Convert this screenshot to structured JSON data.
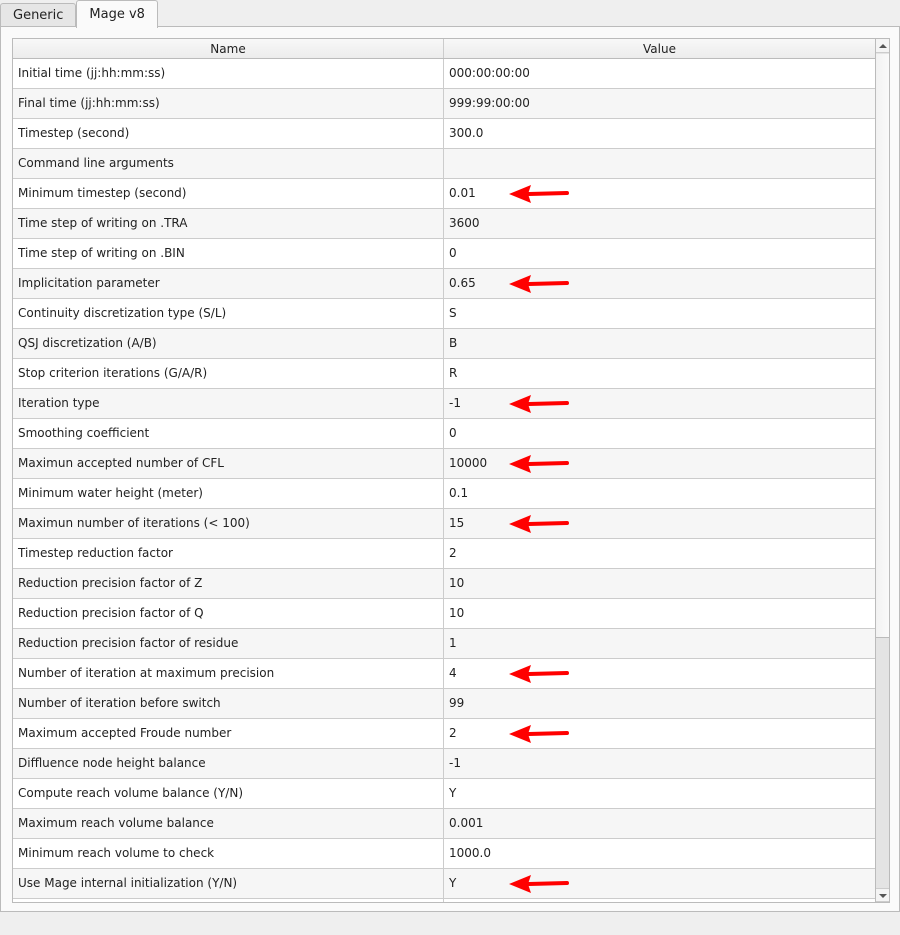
{
  "tabs": [
    {
      "label": "Generic",
      "active": false
    },
    {
      "label": "Mage v8",
      "active": true
    }
  ],
  "table": {
    "columns": [
      "Name",
      "Value"
    ],
    "rows": [
      {
        "name": "Initial time (jj:hh:mm:ss)",
        "value": "000:00:00:00",
        "arrow": false
      },
      {
        "name": "Final time (jj:hh:mm:ss)",
        "value": "999:99:00:00",
        "arrow": false
      },
      {
        "name": "Timestep (second)",
        "value": "300.0",
        "arrow": false
      },
      {
        "name": "Command line arguments",
        "value": "",
        "arrow": false
      },
      {
        "name": "Minimum timestep (second)",
        "value": "0.01",
        "arrow": true
      },
      {
        "name": "Time step of writing on .TRA",
        "value": "3600",
        "arrow": false
      },
      {
        "name": "Time step of writing on .BIN",
        "value": "0",
        "arrow": false
      },
      {
        "name": "Implicitation parameter",
        "value": "0.65",
        "arrow": true
      },
      {
        "name": "Continuity discretization type (S/L)",
        "value": "S",
        "arrow": false
      },
      {
        "name": "QSJ discretization (A/B)",
        "value": "B",
        "arrow": false
      },
      {
        "name": "Stop criterion iterations (G/A/R)",
        "value": "R",
        "arrow": false
      },
      {
        "name": "Iteration type",
        "value": "-1",
        "arrow": true
      },
      {
        "name": "Smoothing coefficient",
        "value": "0",
        "arrow": false
      },
      {
        "name": "Maximun accepted number of CFL",
        "value": "10000",
        "arrow": true
      },
      {
        "name": "Minimum water height (meter)",
        "value": "0.1",
        "arrow": false
      },
      {
        "name": "Maximun number of iterations (< 100)",
        "value": "15",
        "arrow": true
      },
      {
        "name": "Timestep reduction factor",
        "value": "2",
        "arrow": false
      },
      {
        "name": "Reduction precision factor of Z",
        "value": "10",
        "arrow": false
      },
      {
        "name": "Reduction precision factor of Q",
        "value": "10",
        "arrow": false
      },
      {
        "name": "Reduction precision factor of residue",
        "value": "1",
        "arrow": false
      },
      {
        "name": "Number of iteration at maximum precision",
        "value": "4",
        "arrow": true
      },
      {
        "name": "Number of iteration before switch",
        "value": "99",
        "arrow": false
      },
      {
        "name": "Maximum accepted Froude number",
        "value": "2",
        "arrow": true
      },
      {
        "name": "Diffluence node height balance",
        "value": "-1",
        "arrow": false
      },
      {
        "name": "Compute reach volume balance (Y/N)",
        "value": "Y",
        "arrow": false
      },
      {
        "name": "Maximum reach volume balance",
        "value": "0.001",
        "arrow": false
      },
      {
        "name": "Minimum reach volume to check",
        "value": "1000.0",
        "arrow": false
      },
      {
        "name": "Use Mage internal initialization (Y/N)",
        "value": "Y",
        "arrow": true
      },
      {
        "name": "",
        "value": "",
        "arrow": false
      }
    ]
  },
  "colors": {
    "annotation_arrow": "#ff0000"
  },
  "scrollbar": {
    "position_percent": 0
  }
}
